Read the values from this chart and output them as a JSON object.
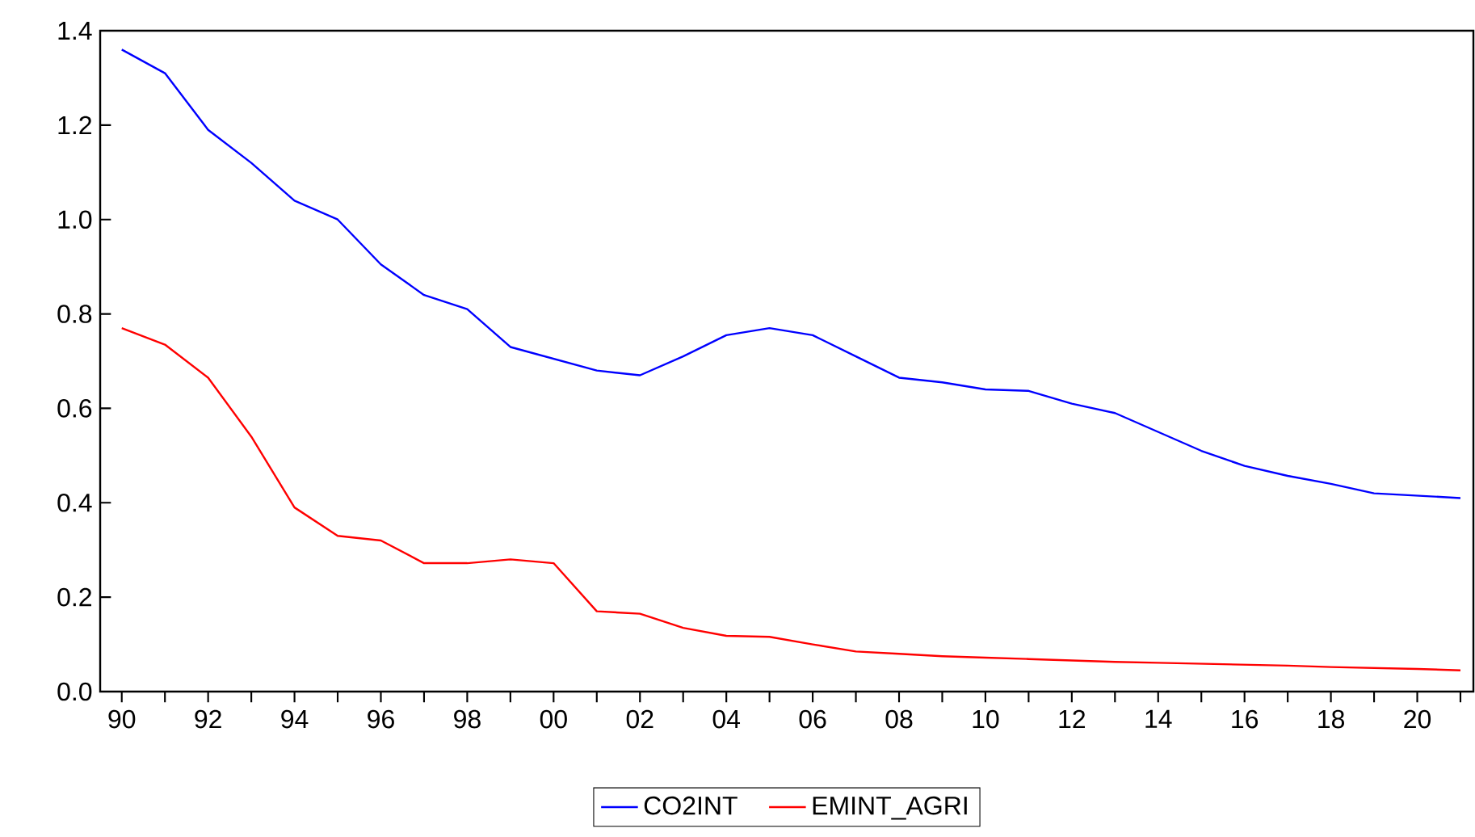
{
  "chart_data": {
    "type": "line",
    "categories": [
      "90",
      null,
      "92",
      null,
      "94",
      null,
      "96",
      null,
      "98",
      null,
      "00",
      null,
      "02",
      null,
      "04",
      null,
      "06",
      null,
      "08",
      null,
      "10",
      null,
      "12",
      null,
      "14",
      null,
      "16",
      null,
      "18",
      null,
      "20",
      null
    ],
    "series": [
      {
        "name": "CO2INT",
        "color": "#0000ff",
        "values": [
          1.36,
          1.31,
          1.19,
          1.12,
          1.04,
          1.0,
          0.905,
          0.84,
          0.81,
          0.73,
          0.705,
          0.68,
          0.67,
          0.71,
          0.755,
          0.77,
          0.755,
          0.71,
          0.665,
          0.655,
          0.64,
          0.637,
          0.61,
          0.59,
          0.55,
          0.51,
          0.478,
          0.457,
          0.44,
          0.42,
          0.415,
          0.41
        ]
      },
      {
        "name": "EMINT_AGRI",
        "color": "#ff0000",
        "values": [
          0.77,
          0.735,
          0.665,
          0.54,
          0.39,
          0.33,
          0.32,
          0.272,
          0.272,
          0.28,
          0.272,
          0.17,
          0.165,
          0.135,
          0.118,
          0.116,
          0.1,
          0.085,
          0.08,
          0.075,
          0.072,
          0.069,
          0.066,
          0.063,
          0.061,
          0.059,
          0.057,
          0.055,
          0.052,
          0.05,
          0.048,
          0.045
        ]
      }
    ],
    "ylim": [
      0.0,
      1.4
    ],
    "yticks": [
      {
        "value": 0.0,
        "label": "0.0"
      },
      {
        "value": 0.2,
        "label": "0.2"
      },
      {
        "value": 0.4,
        "label": "0.4"
      },
      {
        "value": 0.6,
        "label": "0.6"
      },
      {
        "value": 0.8,
        "label": "0.8"
      },
      {
        "value": 1.0,
        "label": "1.0"
      },
      {
        "value": 1.2,
        "label": "1.2"
      },
      {
        "value": 1.4,
        "label": "1.4"
      }
    ],
    "legend": "bottom"
  }
}
